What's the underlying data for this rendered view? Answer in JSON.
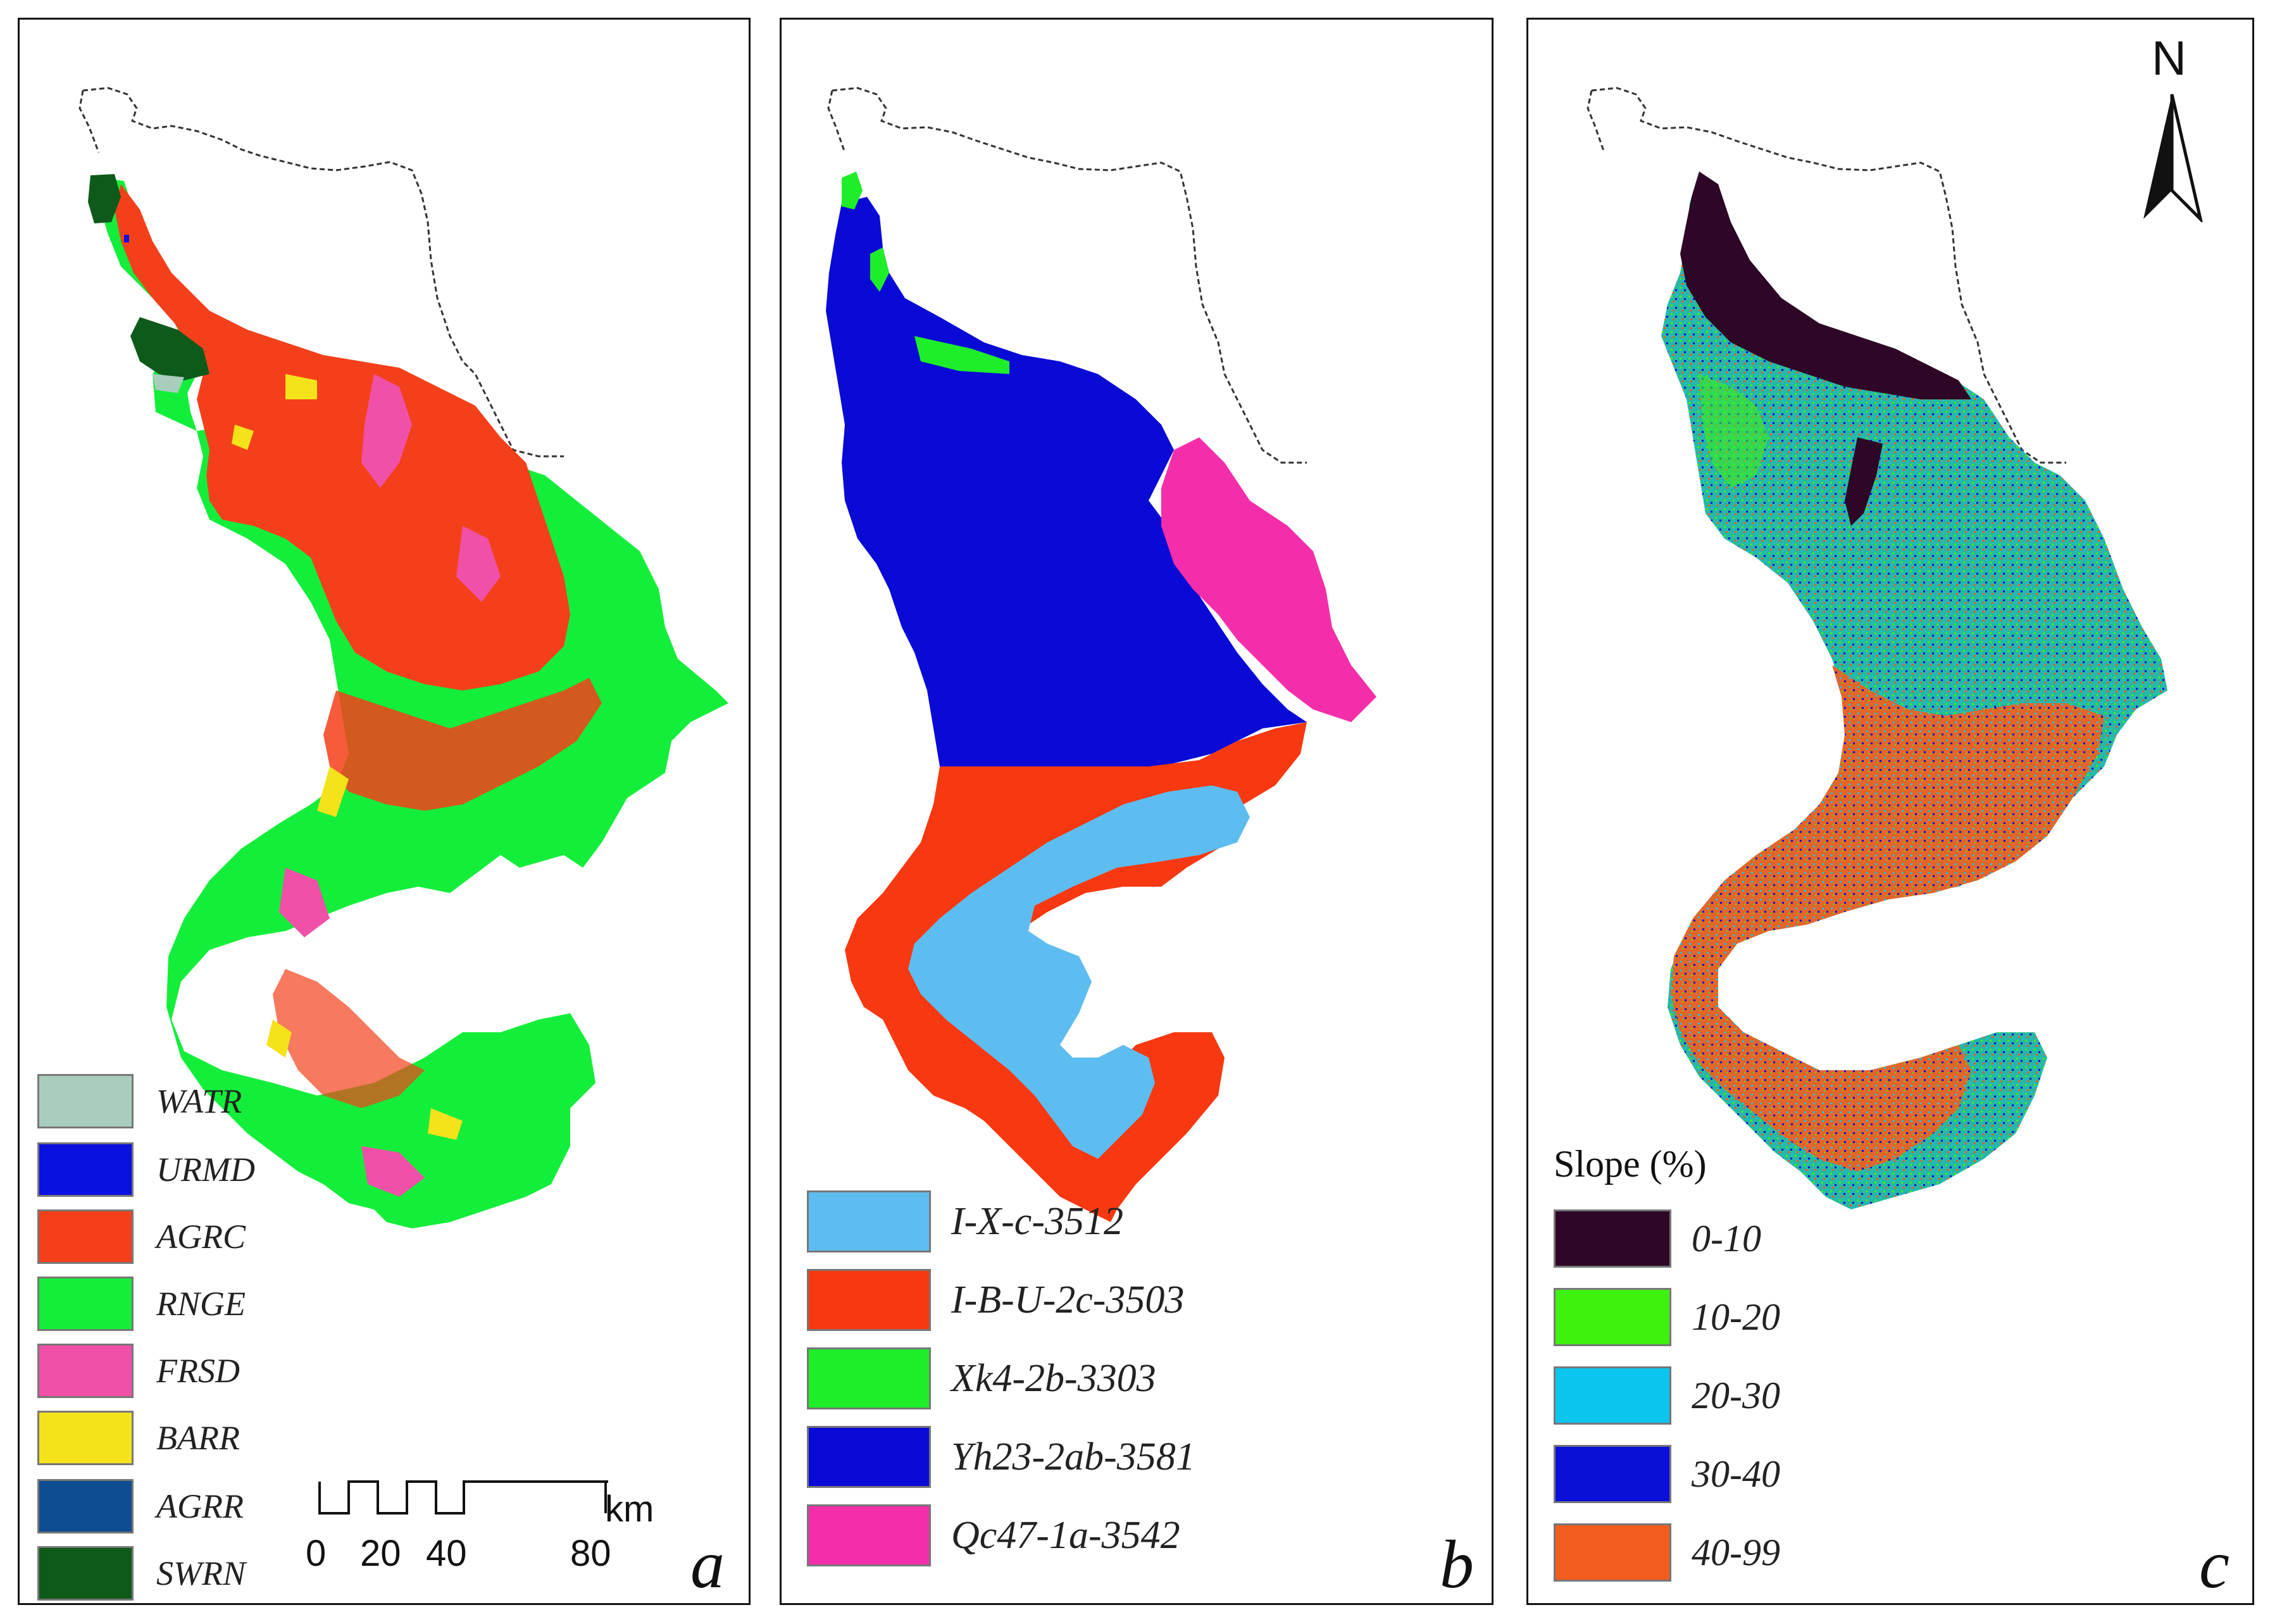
{
  "panels": [
    {
      "letter": "a",
      "legend": [
        {
          "code": "WATR",
          "color": "#a9cdbd"
        },
        {
          "code": "URMD",
          "color": "#0a10e0"
        },
        {
          "code": "AGRC",
          "color": "#f4401a"
        },
        {
          "code": "RNGE",
          "color": "#13ee3a"
        },
        {
          "code": "FRSD",
          "color": "#f050a8"
        },
        {
          "code": "BARR",
          "color": "#f4e21a"
        },
        {
          "code": "AGRR",
          "color": "#0f4d93"
        },
        {
          "code": "SWRN",
          "color": "#0d5a1a"
        }
      ],
      "scale_bar": {
        "ticks": [
          "0",
          "20",
          "40",
          "80"
        ],
        "unit": "km"
      }
    },
    {
      "letter": "b",
      "legend": [
        {
          "code": "I-X-c-3512",
          "color": "#5ebdf0"
        },
        {
          "code": "I-B-U-2c-3503",
          "color": "#f83810"
        },
        {
          "code": "Xk4-2b-3303",
          "color": "#1eee2a"
        },
        {
          "code": "Yh23-2ab-3581",
          "color": "#0a0ad6"
        },
        {
          "code": "Qc47-1a-3542",
          "color": "#f42eaa"
        }
      ]
    },
    {
      "letter": "c",
      "legend_title": "Slope (%)",
      "north_label": "N",
      "legend": [
        {
          "code": "0-10",
          "color": "#2e0626"
        },
        {
          "code": "10-20",
          "color": "#3ef20e"
        },
        {
          "code": "20-30",
          "color": "#0ac6ee"
        },
        {
          "code": "30-40",
          "color": "#0a10d8"
        },
        {
          "code": "40-99",
          "color": "#f25c1e"
        }
      ]
    }
  ]
}
